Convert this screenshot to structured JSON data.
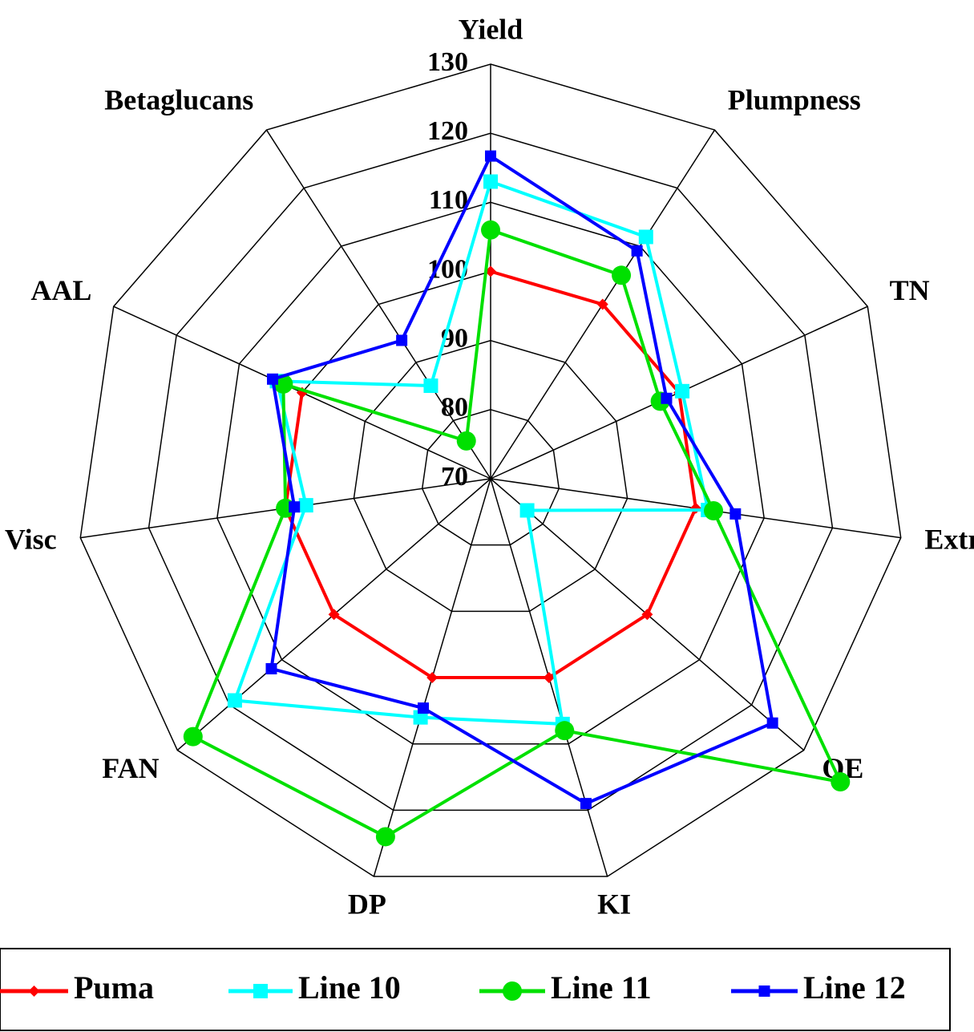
{
  "chart_data": {
    "type": "radar",
    "categories": [
      "Yield",
      "Plumpness",
      "TN",
      "Extract",
      "OE",
      "KI",
      "DP",
      "FAN",
      "Visc",
      "AAL",
      "Betaglucans"
    ],
    "rlim": [
      70,
      130
    ],
    "rticks": [
      70,
      80,
      90,
      100,
      110,
      120,
      130
    ],
    "grid": true,
    "legend": "bottom",
    "series": [
      {
        "name": "Puma",
        "color": "#ff0000",
        "marker": "diamond",
        "values": [
          100,
          100,
          100,
          100,
          100,
          100,
          100,
          100,
          100,
          100,
          null
        ]
      },
      {
        "name": "Line 10",
        "color": "#00ffff",
        "marker": "square",
        "values": [
          113,
          111.6,
          100.5,
          101.8,
          77,
          107,
          106,
          119,
          97,
          104,
          86
        ]
      },
      {
        "name": "Line 11",
        "color": "#00e000",
        "marker": "circle",
        "values": [
          106,
          105,
          97,
          102.6,
          137,
          108,
          124,
          127,
          100,
          103,
          76.5
        ]
      },
      {
        "name": "Line 12",
        "color": "#0000ff",
        "marker": "smallsquare",
        "values": [
          116.7,
          109.2,
          98,
          105.8,
          124,
          119,
          104.6,
          112,
          98.7,
          104.7,
          93.8
        ]
      }
    ]
  }
}
